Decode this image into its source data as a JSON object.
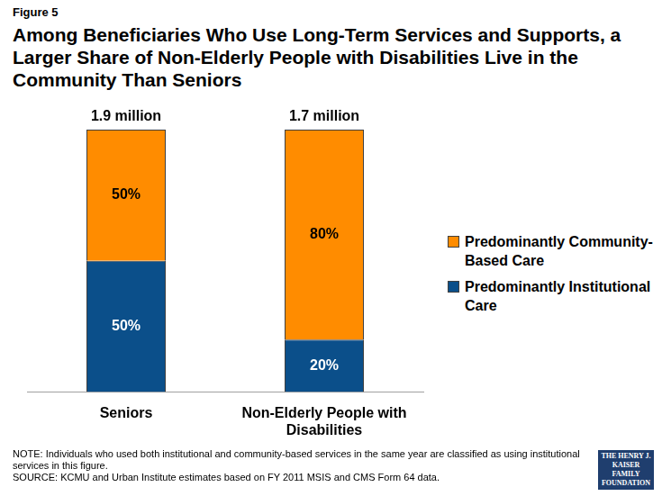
{
  "chart_data": {
    "type": "bar",
    "figure_label": "Figure 5",
    "title": "Among Beneficiaries Who Use Long-Term Services and Supports, a Larger Share of Non-Elderly People with Disabilities Live in the Community Than Seniors",
    "categories": [
      "Seniors",
      "Non-Elderly People with Disabilities"
    ],
    "series": [
      {
        "name": "Predominantly Institutional Care",
        "color": "#0b4f8a",
        "values": [
          50,
          20
        ],
        "value_labels": [
          "50%",
          "20%"
        ]
      },
      {
        "name": "Predominantly Community-Based Care",
        "color": "#ff8c00",
        "values": [
          50,
          80
        ],
        "value_labels": [
          "50%",
          "80%"
        ]
      }
    ],
    "bar_totals": [
      "1.9 million",
      "1.7 million"
    ],
    "stacked": true,
    "data_labels": true,
    "ylim": [
      0,
      100
    ],
    "grid": false,
    "tick_labels": "x",
    "legend": "right",
    "note": "NOTE: Individuals who used both institutional and community-based services in the same year are classified as using institutional services in this figure.",
    "source": "SOURCE: KCMU and Urban Institute estimates based on FY 2011 MSIS and CMS Form 64 data.",
    "logo": "THE HENRY J. KAISER FAMILY FOUNDATION"
  }
}
